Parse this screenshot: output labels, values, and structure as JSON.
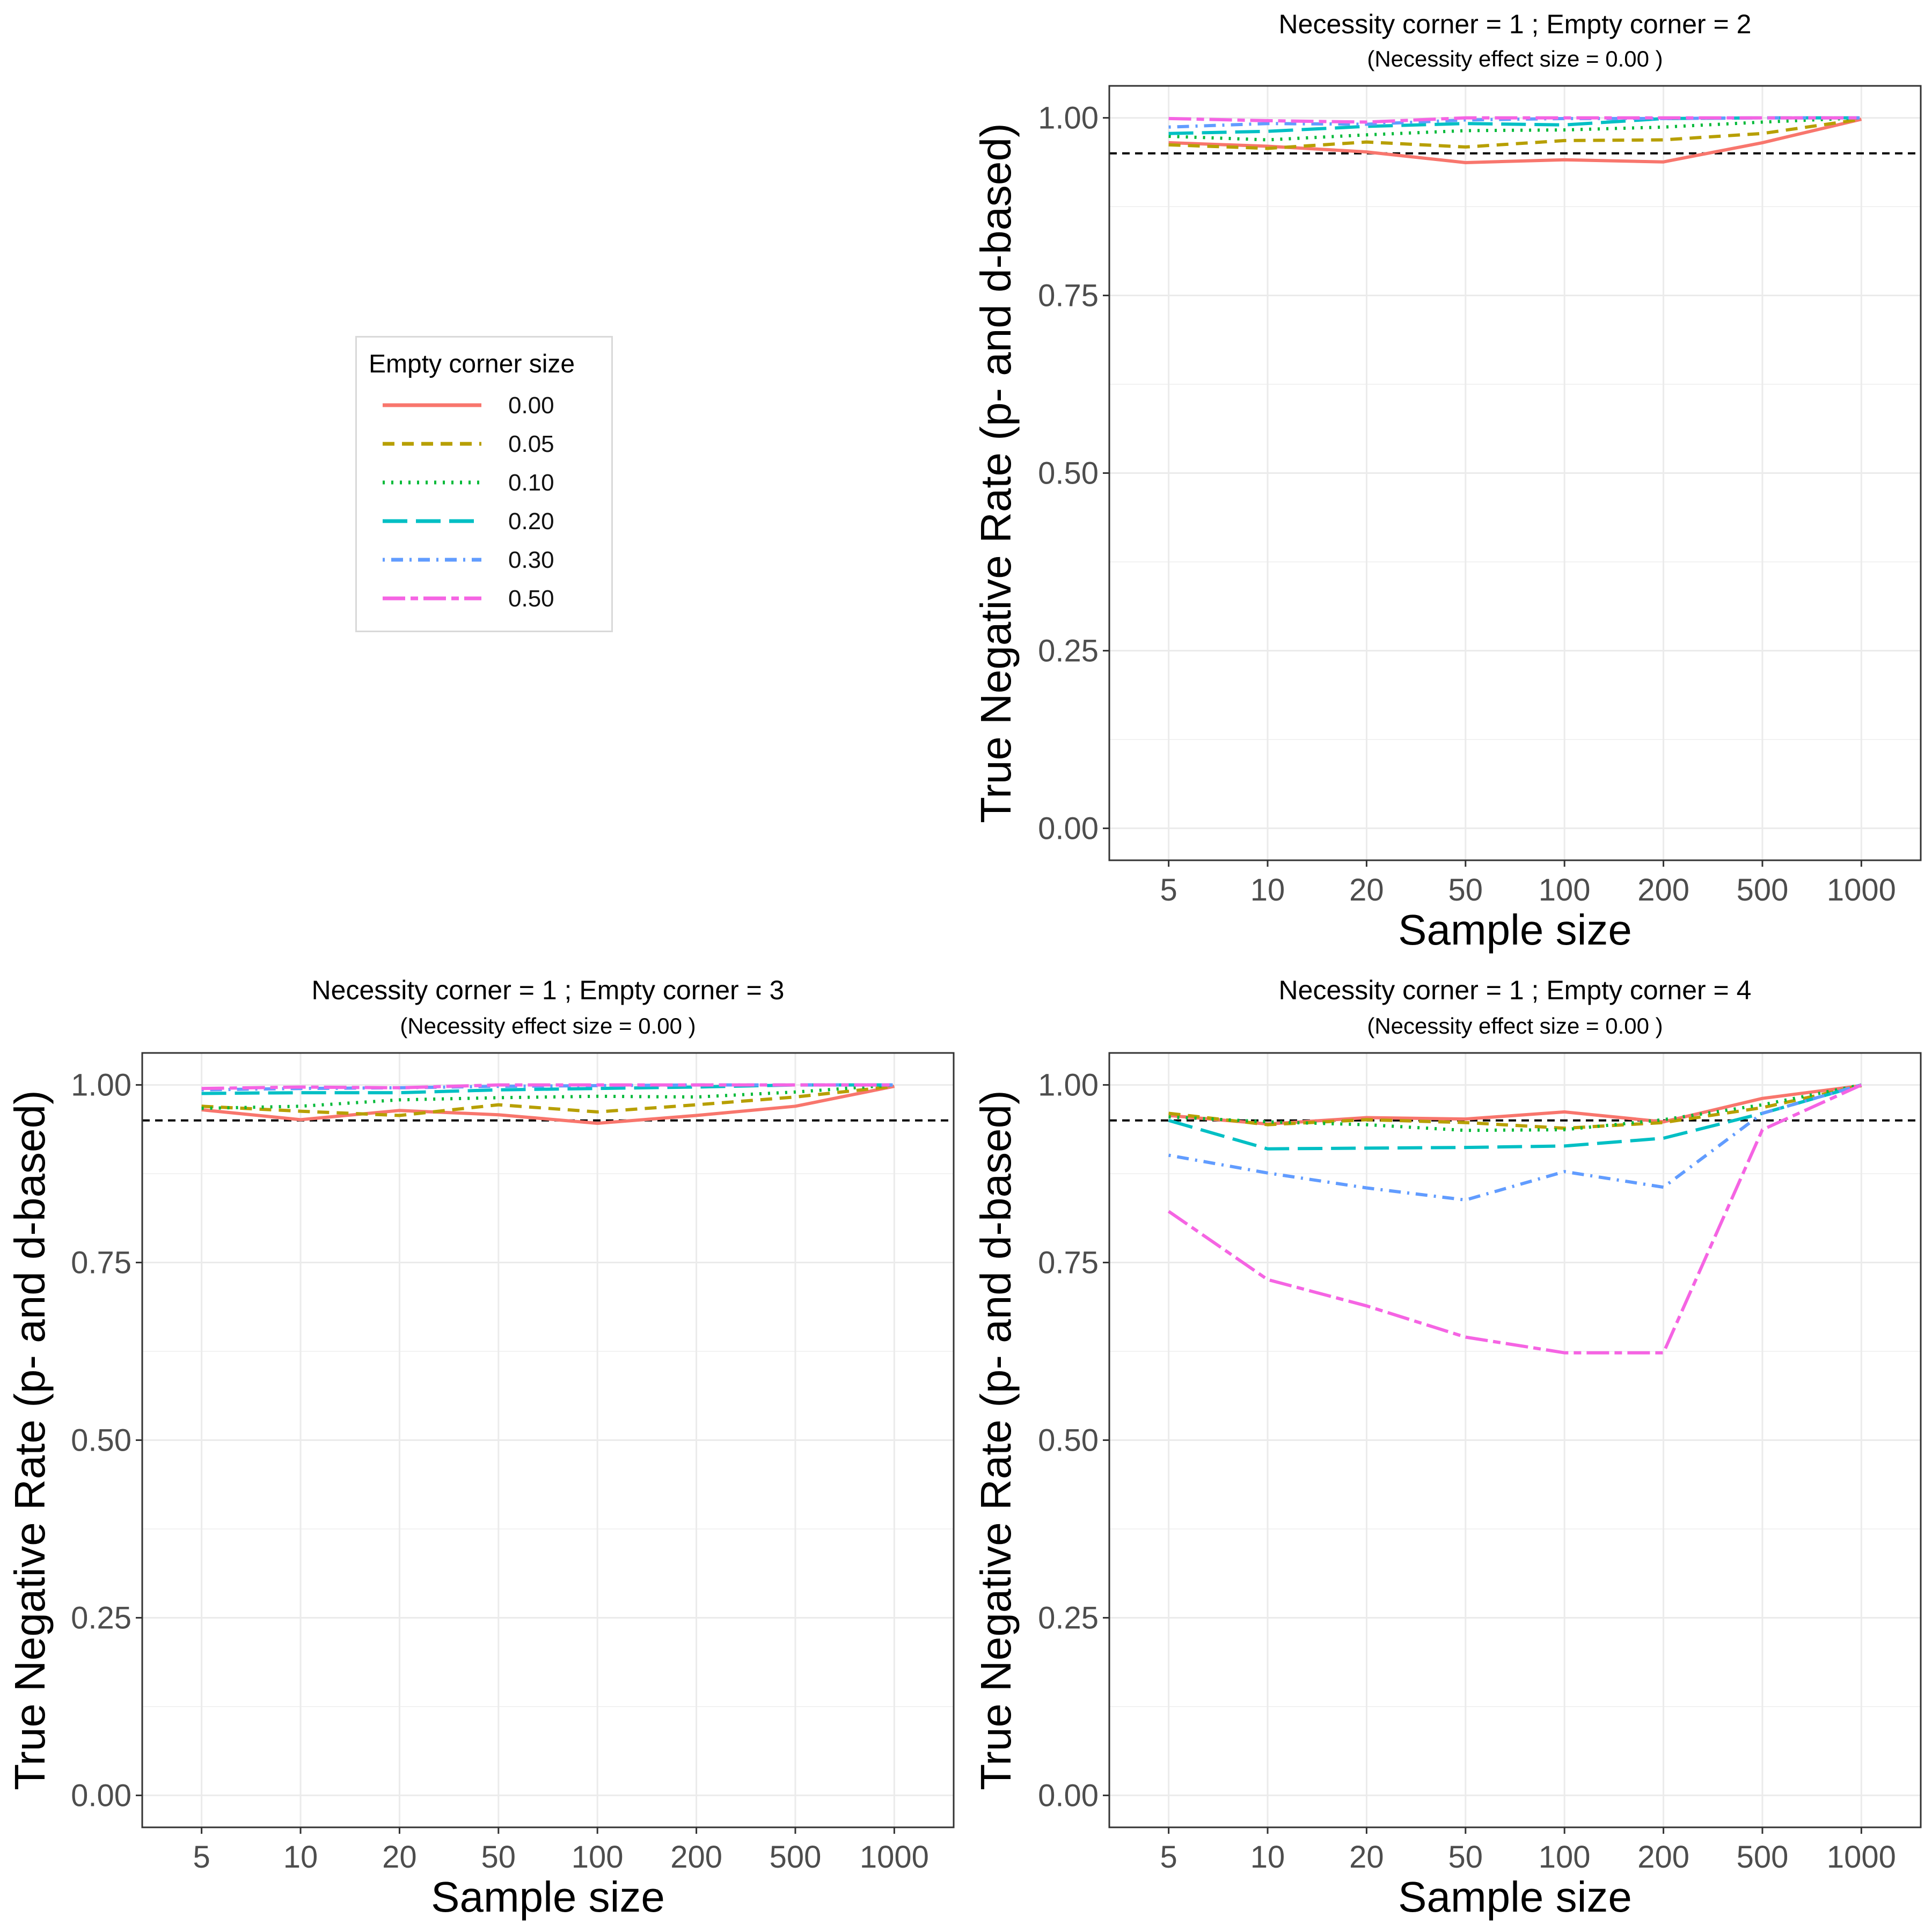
{
  "legend": {
    "title": "Empty corner size",
    "items": [
      {
        "label": "0.00",
        "color": "#F8766D",
        "dash": "solid"
      },
      {
        "label": "0.05",
        "color": "#B79F00",
        "dash": "dashed"
      },
      {
        "label": "0.10",
        "color": "#00BA38",
        "dash": "dotted"
      },
      {
        "label": "0.20",
        "color": "#00BFC4",
        "dash": "longdash"
      },
      {
        "label": "0.30",
        "color": "#619CFF",
        "dash": "dotdash"
      },
      {
        "label": "0.50",
        "color": "#F564E3",
        "dash": "twodash"
      }
    ]
  },
  "chart_data": [
    {
      "type": "line",
      "title": "Necessity corner = 1 ; Empty corner = 2",
      "subtitle": "(Necessity effect size = 0.00 )",
      "xlabel": "Sample size",
      "ylabel": "True Negative Rate (p- and d-based)",
      "categories": [
        "5",
        "10",
        "20",
        "50",
        "100",
        "200",
        "500",
        "1000"
      ],
      "ylim": [
        -0.045,
        1.045
      ],
      "yticks": [
        "0.00",
        "0.25",
        "0.50",
        "0.75",
        "1.00"
      ],
      "reference_line": 0.95,
      "grid": true,
      "series": [
        {
          "name": "0.00",
          "values": [
            0.965,
            0.96,
            0.952,
            0.937,
            0.941,
            0.938,
            0.965,
            0.998
          ]
        },
        {
          "name": "0.05",
          "values": [
            0.962,
            0.957,
            0.966,
            0.959,
            0.968,
            0.969,
            0.978,
            0.998
          ]
        },
        {
          "name": "0.10",
          "values": [
            0.974,
            0.969,
            0.976,
            0.982,
            0.983,
            0.987,
            0.994,
            1.0
          ]
        },
        {
          "name": "0.20",
          "values": [
            0.978,
            0.981,
            0.988,
            0.992,
            0.99,
            0.999,
            1.0,
            1.0
          ]
        },
        {
          "name": "0.30",
          "values": [
            0.987,
            0.992,
            0.991,
            0.997,
            0.999,
            0.999,
            1.0,
            1.0
          ]
        },
        {
          "name": "0.50",
          "values": [
            0.999,
            0.996,
            0.994,
            1.0,
            1.0,
            1.0,
            1.0,
            1.0
          ]
        }
      ]
    },
    {
      "type": "line",
      "title": "Necessity corner = 1 ; Empty corner = 3",
      "subtitle": "(Necessity effect size = 0.00 )",
      "xlabel": "Sample size",
      "ylabel": "True Negative Rate (p- and d-based)",
      "categories": [
        "5",
        "10",
        "20",
        "50",
        "100",
        "200",
        "500",
        "1000"
      ],
      "ylim": [
        -0.045,
        1.045
      ],
      "yticks": [
        "0.00",
        "0.25",
        "0.50",
        "0.75",
        "1.00"
      ],
      "reference_line": 0.95,
      "grid": true,
      "series": [
        {
          "name": "0.00",
          "values": [
            0.965,
            0.951,
            0.964,
            0.958,
            0.946,
            0.957,
            0.97,
            0.998
          ]
        },
        {
          "name": "0.05",
          "values": [
            0.97,
            0.963,
            0.957,
            0.972,
            0.962,
            0.972,
            0.983,
            0.998
          ]
        },
        {
          "name": "0.10",
          "values": [
            0.967,
            0.97,
            0.979,
            0.982,
            0.984,
            0.983,
            0.99,
            1.0
          ]
        },
        {
          "name": "0.20",
          "values": [
            0.988,
            0.989,
            0.989,
            0.993,
            0.995,
            0.997,
            1.0,
            1.0
          ]
        },
        {
          "name": "0.30",
          "values": [
            0.993,
            0.995,
            0.996,
            0.998,
            0.999,
            1.0,
            1.0,
            1.0
          ]
        },
        {
          "name": "0.50",
          "values": [
            0.995,
            0.997,
            0.996,
            1.0,
            1.0,
            1.0,
            1.0,
            1.0
          ]
        }
      ]
    },
    {
      "type": "line",
      "title": "Necessity corner = 1 ; Empty corner = 4",
      "subtitle": "(Necessity effect size = 0.00 )",
      "xlabel": "Sample size",
      "ylabel": "True Negative Rate (p- and d-based)",
      "categories": [
        "5",
        "10",
        "20",
        "50",
        "100",
        "200",
        "500",
        "1000"
      ],
      "ylim": [
        -0.045,
        1.045
      ],
      "yticks": [
        "0.00",
        "0.25",
        "0.50",
        "0.75",
        "1.00"
      ],
      "reference_line": 0.95,
      "grid": true,
      "series": [
        {
          "name": "0.00",
          "values": [
            0.957,
            0.945,
            0.954,
            0.952,
            0.962,
            0.948,
            0.981,
            0.999
          ]
        },
        {
          "name": "0.05",
          "values": [
            0.96,
            0.944,
            0.951,
            0.947,
            0.939,
            0.947,
            0.968,
            0.999
          ]
        },
        {
          "name": "0.10",
          "values": [
            0.955,
            0.948,
            0.944,
            0.936,
            0.937,
            0.951,
            0.972,
            1.0
          ]
        },
        {
          "name": "0.20",
          "values": [
            0.95,
            0.91,
            0.911,
            0.912,
            0.914,
            0.925,
            0.96,
            1.0
          ]
        },
        {
          "name": "0.30",
          "values": [
            0.901,
            0.876,
            0.855,
            0.838,
            0.878,
            0.856,
            0.96,
            1.0
          ]
        },
        {
          "name": "0.50",
          "values": [
            0.822,
            0.726,
            0.689,
            0.645,
            0.623,
            0.623,
            0.937,
            1.0
          ]
        }
      ]
    }
  ]
}
